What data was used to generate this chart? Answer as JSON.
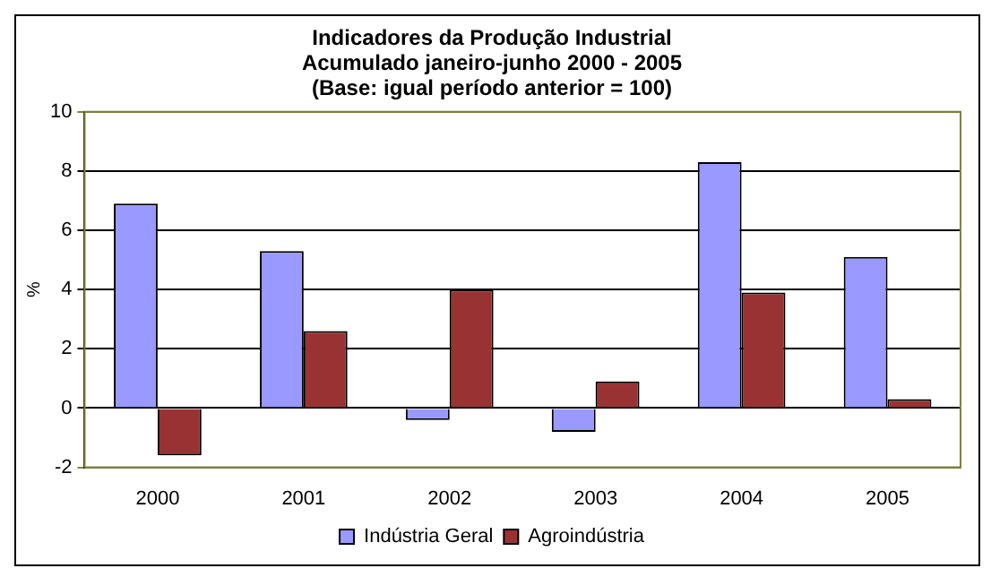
{
  "chart_data": {
    "type": "bar",
    "title": [
      "Indicadores da Produção Industrial",
      "Acumulado janeiro-junho 2000 - 2005",
      "(Base: igual período anterior = 100)"
    ],
    "ylabel": "%",
    "categories": [
      "2000",
      "2001",
      "2002",
      "2003",
      "2004",
      "2005"
    ],
    "series": [
      {
        "name": "Indústria Geral",
        "color": "#9999ff",
        "values": [
          6.9,
          5.3,
          -0.4,
          -0.8,
          8.3,
          5.1
        ]
      },
      {
        "name": "Agroindústria",
        "color": "#993333",
        "values": [
          -1.6,
          2.6,
          4.0,
          0.9,
          3.9,
          0.3
        ]
      }
    ],
    "ylim": [
      -2,
      10
    ],
    "yticks": [
      -2,
      0,
      2,
      4,
      6,
      8,
      10
    ],
    "grid": "y",
    "legend": "bottom"
  }
}
